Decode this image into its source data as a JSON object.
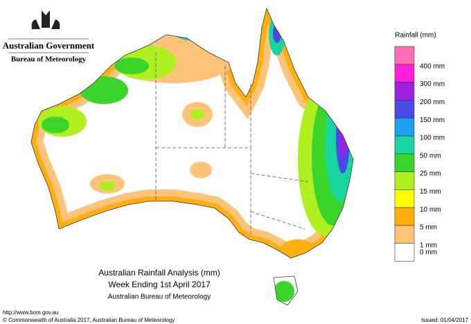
{
  "header": {
    "government": "Australian Government",
    "agency": "Bureau of Meteorology"
  },
  "title": {
    "line1": "Australian Rainfall Analysis (mm)",
    "line2": "Week Ending 1st April 2017",
    "line3": "Australian Bureau of Meteorology"
  },
  "legend": {
    "title": "Rainfall (mm)",
    "colors": [
      "#ff6fb4",
      "#ff1fd8",
      "#a020e0",
      "#4a4ae8",
      "#1ea0f0",
      "#19d6a0",
      "#3ad42a",
      "#b0f020",
      "#ffff00",
      "#ffb010",
      "#ffc47a",
      "#ffffff"
    ],
    "labels": [
      "400 mm",
      "300 mm",
      "200 mm",
      "150 mm",
      "100 mm",
      "50 mm",
      "25 mm",
      "15 mm",
      "10 mm",
      "5 mm",
      "1 mm",
      "0 mm"
    ]
  },
  "footer": {
    "url": "http://www.bom.gov.au",
    "copyright": "© Commonwealth of Australia 2017, Australian Bureau of Meteorology",
    "issued": "Issued: 01/04/2017"
  }
}
